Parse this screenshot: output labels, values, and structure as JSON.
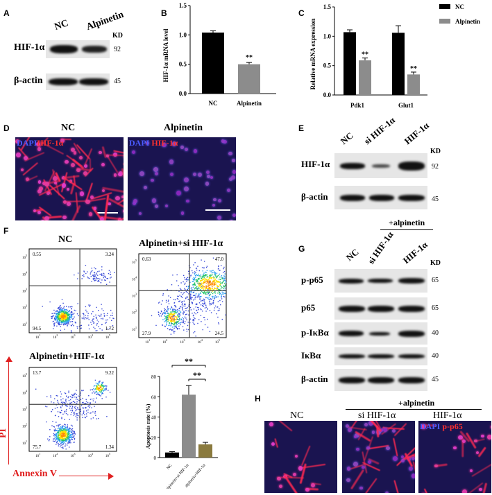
{
  "panels": {
    "a": {
      "letter": "A",
      "lanes": [
        "NC",
        "Alpinetin"
      ],
      "kd_label": "KD",
      "rows": [
        {
          "label": "HIF-1α",
          "kd": "92"
        },
        {
          "label": "β-actin",
          "kd": "45"
        }
      ]
    },
    "b": {
      "letter": "B",
      "ylabel": "HIF-1α mRNA level",
      "yticks": [
        "0.0",
        "0.5",
        "1.0",
        "1.5"
      ],
      "sig": "**"
    },
    "c": {
      "letter": "C",
      "ylabel": "Relative mRNA expression",
      "yticks": [
        "0.0",
        "0.5",
        "1.0",
        "1.5"
      ],
      "sig": [
        "**",
        "**"
      ]
    },
    "d": {
      "letter": "D",
      "images": [
        {
          "title": "NC",
          "legend_dapi": "DAPI",
          "legend_marker": "HIF-1α"
        },
        {
          "title": "Alpinetin",
          "legend_dapi": "DAPI",
          "legend_marker": "HIF-1α"
        }
      ]
    },
    "e": {
      "letter": "E",
      "lanes": [
        "NC",
        "si HIF-1α",
        "HIF-1α"
      ],
      "kd_label": "KD",
      "rows": [
        {
          "label": "HIF-1α",
          "kd": "92"
        },
        {
          "label": "β-actin",
          "kd": "45"
        }
      ],
      "treatment": "+alpinetin"
    },
    "f": {
      "letter": "F",
      "plots": [
        {
          "title": "NC",
          "q": [
            "0.55",
            "3.24",
            "94.5",
            "1.72"
          ]
        },
        {
          "title": "Alpinetin+si HIF-1α",
          "q": [
            "0.63",
            "47.0",
            "27.9",
            "24.5"
          ]
        },
        {
          "title": "Alpinetin+HIF-1α",
          "q": [
            "13.7",
            "9.22",
            "75.7",
            "1.34"
          ]
        }
      ],
      "axis_y": "PI",
      "axis_x": "Annexin V",
      "tick_labels": [
        "10",
        "10",
        "10",
        "10",
        "10"
      ],
      "tick_exps": [
        "1",
        "2",
        "3",
        "4",
        "5"
      ]
    },
    "g": {
      "letter": "G",
      "lanes": [
        "NC",
        "si HIF-1α",
        "HIF-1α"
      ],
      "kd_label": "KD",
      "rows": [
        {
          "label": "p-p65",
          "kd": "65"
        },
        {
          "label": "p65",
          "kd": "65"
        },
        {
          "label": "p-IκBα",
          "kd": "40"
        },
        {
          "label": "IκBα",
          "kd": "40"
        },
        {
          "label": "β-actin",
          "kd": "45"
        }
      ]
    },
    "h": {
      "letter": "H",
      "treatment": "+alpinetin",
      "images": [
        {
          "title": "NC"
        },
        {
          "title": "si HIF-1α"
        },
        {
          "title": "HIF-1α",
          "legend_dapi": "DAPI",
          "legend_marker": "p-p65"
        }
      ]
    }
  },
  "chart_data": [
    {
      "type": "bar",
      "panel": "B",
      "categories": [
        "NC",
        "Alpinetin"
      ],
      "values": [
        1.04,
        0.5
      ],
      "errors": [
        0.03,
        0.03
      ],
      "colors": [
        "#000000",
        "#8c8c8c"
      ],
      "title": "",
      "xlabel": "",
      "ylabel": "HIF-1α mRNA level",
      "ylim": [
        0,
        1.5
      ],
      "annotations": [
        {
          "category": "Alpinetin",
          "text": "**"
        }
      ]
    },
    {
      "type": "bar",
      "panel": "C",
      "categories": [
        "Pdk1",
        "Glut1"
      ],
      "series": [
        {
          "name": "NC",
          "values": [
            1.07,
            1.06
          ],
          "errors": [
            0.04,
            0.12
          ],
          "color": "#000000"
        },
        {
          "name": "Alpinetin",
          "values": [
            0.59,
            0.35
          ],
          "errors": [
            0.04,
            0.04
          ],
          "color": "#8c8c8c"
        }
      ],
      "title": "",
      "xlabel": "",
      "ylabel": "Relative mRNA expression",
      "ylim": [
        0,
        1.5
      ],
      "legend": "top-right",
      "annotations": [
        {
          "category": "Pdk1",
          "series": "Alpinetin",
          "text": "**"
        },
        {
          "category": "Glut1",
          "series": "Alpinetin",
          "text": "**"
        }
      ]
    },
    {
      "type": "bar",
      "panel": "F",
      "categories": [
        "NC",
        "alpinetin+si HIF-1α",
        "alpinetin+HIF-1α"
      ],
      "values": [
        5,
        62,
        13
      ],
      "errors": [
        0.8,
        9,
        2
      ],
      "colors": [
        "#000000",
        "#8c8c8c",
        "#8a7a3e"
      ],
      "title": "",
      "xlabel": "",
      "ylabel": "Apoptosis rate (%)",
      "ylim": [
        0,
        80
      ],
      "yticks": [
        "0",
        "20",
        "40",
        "60",
        "80"
      ],
      "annotations": [
        {
          "between": [
            "NC",
            "alpinetin+HIF-1α"
          ],
          "text": "**"
        },
        {
          "between": [
            "alpinetin+si HIF-1α",
            "alpinetin+HIF-1α"
          ],
          "text": "**"
        }
      ]
    }
  ]
}
